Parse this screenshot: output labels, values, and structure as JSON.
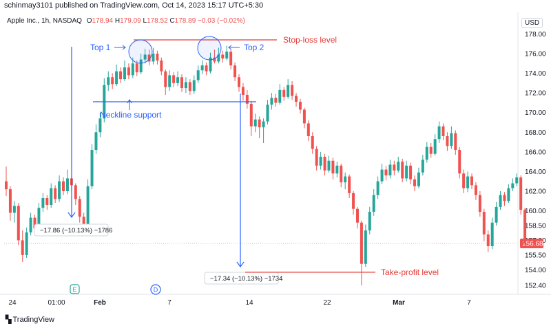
{
  "header": {
    "publisher": "schinmay3101 published on TradingView.com, Oct 14, 2023 15:17 UTC+5:30"
  },
  "symbol": {
    "name": "Apple Inc., 1h, NASDAQ",
    "o_label": "O",
    "o_value": "178.94",
    "h_label": "H",
    "h_value": "179.09",
    "l_label": "L",
    "l_value": "178.52",
    "c_label": "C",
    "c_value": "178.89",
    "change": "−0.03 (−0.02%)"
  },
  "currency": "USD",
  "branding": "TradingView",
  "colors": {
    "up": "#26a69a",
    "down": "#ef5350",
    "annotation_blue": "#2962ff",
    "annotation_red": "#e53935",
    "price_tag": "#ef5350",
    "event_earnings": "#26a69a",
    "event_dividend": "#2962ff"
  },
  "chart_data": {
    "type": "candlestick",
    "y_axis": {
      "ticks": [
        "178.00",
        "176.00",
        "174.00",
        "172.00",
        "170.00",
        "168.00",
        "166.00",
        "164.00",
        "162.00",
        "160.00",
        "158.50",
        "157.00",
        "155.50",
        "154.00",
        "152.40"
      ],
      "range": [
        151.5,
        178.8
      ],
      "last_price": "156.68"
    },
    "x_axis": {
      "ticks": [
        "24",
        "01:00",
        "Feb",
        "7",
        "14",
        "22",
        "Mar",
        "7"
      ],
      "bold_ticks": [
        "Feb",
        "Mar"
      ]
    },
    "series": [
      {
        "o": 163.0,
        "c": 162.2,
        "h": 164.5,
        "l": 161.5
      },
      {
        "o": 162.2,
        "c": 159.8,
        "h": 162.5,
        "l": 159.0
      },
      {
        "o": 159.8,
        "c": 160.5,
        "h": 161.0,
        "l": 158.8
      },
      {
        "o": 160.5,
        "c": 157.0,
        "h": 160.8,
        "l": 156.5
      },
      {
        "o": 157.0,
        "c": 155.5,
        "h": 158.0,
        "l": 154.8
      },
      {
        "o": 155.5,
        "c": 157.8,
        "h": 158.3,
        "l": 155.2
      },
      {
        "o": 157.8,
        "c": 159.3,
        "h": 159.8,
        "l": 157.5
      },
      {
        "o": 159.3,
        "c": 158.2,
        "h": 159.6,
        "l": 157.6
      },
      {
        "o": 158.2,
        "c": 160.3,
        "h": 160.8,
        "l": 158.0
      },
      {
        "o": 160.3,
        "c": 161.3,
        "h": 161.8,
        "l": 159.9
      },
      {
        "o": 161.3,
        "c": 160.6,
        "h": 161.6,
        "l": 160.1
      },
      {
        "o": 160.6,
        "c": 162.3,
        "h": 162.8,
        "l": 160.3
      },
      {
        "o": 162.3,
        "c": 161.2,
        "h": 162.6,
        "l": 160.8
      },
      {
        "o": 161.2,
        "c": 163.0,
        "h": 163.6,
        "l": 160.9
      },
      {
        "o": 163.0,
        "c": 162.0,
        "h": 163.4,
        "l": 161.6
      },
      {
        "o": 162.0,
        "c": 163.3,
        "h": 164.2,
        "l": 161.7
      },
      {
        "o": 163.3,
        "c": 162.6,
        "h": 163.5,
        "l": 162.0
      },
      {
        "o": 162.6,
        "c": 161.2,
        "h": 162.8,
        "l": 160.6
      },
      {
        "o": 161.2,
        "c": 159.4,
        "h": 161.5,
        "l": 158.8
      },
      {
        "o": 159.4,
        "c": 158.6,
        "h": 159.8,
        "l": 158.0
      },
      {
        "o": 158.6,
        "c": 162.5,
        "h": 163.2,
        "l": 158.3
      },
      {
        "o": 162.5,
        "c": 166.2,
        "h": 166.8,
        "l": 162.2
      },
      {
        "o": 166.2,
        "c": 168.0,
        "h": 168.8,
        "l": 165.8
      },
      {
        "o": 168.0,
        "c": 169.4,
        "h": 170.0,
        "l": 167.5
      },
      {
        "o": 169.4,
        "c": 172.8,
        "h": 173.5,
        "l": 169.0
      },
      {
        "o": 172.8,
        "c": 173.6,
        "h": 174.2,
        "l": 172.2
      },
      {
        "o": 173.6,
        "c": 172.9,
        "h": 174.0,
        "l": 172.4
      },
      {
        "o": 172.9,
        "c": 174.2,
        "h": 174.9,
        "l": 172.7
      },
      {
        "o": 174.2,
        "c": 173.4,
        "h": 174.6,
        "l": 173.0
      },
      {
        "o": 173.4,
        "c": 174.6,
        "h": 175.3,
        "l": 173.2
      },
      {
        "o": 174.6,
        "c": 173.8,
        "h": 175.0,
        "l": 173.4
      },
      {
        "o": 173.8,
        "c": 175.0,
        "h": 175.6,
        "l": 173.5
      },
      {
        "o": 175.0,
        "c": 174.1,
        "h": 175.3,
        "l": 173.7
      },
      {
        "o": 174.1,
        "c": 175.4,
        "h": 176.0,
        "l": 173.9
      },
      {
        "o": 175.4,
        "c": 175.9,
        "h": 176.5,
        "l": 175.0
      },
      {
        "o": 175.9,
        "c": 175.2,
        "h": 176.4,
        "l": 174.8
      },
      {
        "o": 175.2,
        "c": 176.0,
        "h": 176.6,
        "l": 174.9
      },
      {
        "o": 176.0,
        "c": 175.3,
        "h": 176.3,
        "l": 174.9
      },
      {
        "o": 175.3,
        "c": 174.2,
        "h": 175.6,
        "l": 173.8
      },
      {
        "o": 174.2,
        "c": 172.6,
        "h": 174.4,
        "l": 171.8
      },
      {
        "o": 172.6,
        "c": 173.8,
        "h": 174.3,
        "l": 172.2
      },
      {
        "o": 173.8,
        "c": 173.0,
        "h": 174.1,
        "l": 172.6
      },
      {
        "o": 173.0,
        "c": 173.6,
        "h": 174.2,
        "l": 172.7
      },
      {
        "o": 173.6,
        "c": 172.5,
        "h": 173.9,
        "l": 172.1
      },
      {
        "o": 172.5,
        "c": 173.1,
        "h": 173.6,
        "l": 172.0
      },
      {
        "o": 173.1,
        "c": 172.2,
        "h": 173.4,
        "l": 171.8
      },
      {
        "o": 172.2,
        "c": 173.3,
        "h": 173.8,
        "l": 171.9
      },
      {
        "o": 173.3,
        "c": 174.3,
        "h": 174.8,
        "l": 173.0
      },
      {
        "o": 174.3,
        "c": 174.8,
        "h": 175.3,
        "l": 173.9
      },
      {
        "o": 174.8,
        "c": 174.2,
        "h": 175.1,
        "l": 173.8
      },
      {
        "o": 174.2,
        "c": 175.6,
        "h": 176.1,
        "l": 174.0
      },
      {
        "o": 175.6,
        "c": 175.2,
        "h": 176.4,
        "l": 175.0
      },
      {
        "o": 175.2,
        "c": 175.9,
        "h": 176.6,
        "l": 175.0
      },
      {
        "o": 175.9,
        "c": 175.5,
        "h": 176.3,
        "l": 175.1
      },
      {
        "o": 175.5,
        "c": 176.2,
        "h": 176.8,
        "l": 175.3
      },
      {
        "o": 176.2,
        "c": 174.8,
        "h": 176.4,
        "l": 174.4
      },
      {
        "o": 174.8,
        "c": 173.6,
        "h": 175.1,
        "l": 173.2
      },
      {
        "o": 173.6,
        "c": 172.6,
        "h": 173.9,
        "l": 172.1
      },
      {
        "o": 172.6,
        "c": 171.8,
        "h": 173.0,
        "l": 171.2
      },
      {
        "o": 171.8,
        "c": 170.9,
        "h": 172.3,
        "l": 170.4
      },
      {
        "o": 170.9,
        "c": 168.6,
        "h": 171.2,
        "l": 167.6
      },
      {
        "o": 168.6,
        "c": 169.3,
        "h": 169.9,
        "l": 168.0
      },
      {
        "o": 169.3,
        "c": 168.5,
        "h": 169.6,
        "l": 167.4
      },
      {
        "o": 168.5,
        "c": 169.1,
        "h": 169.4,
        "l": 166.9
      },
      {
        "o": 169.1,
        "c": 170.8,
        "h": 171.3,
        "l": 168.8
      },
      {
        "o": 170.8,
        "c": 171.5,
        "h": 172.0,
        "l": 170.3
      },
      {
        "o": 171.5,
        "c": 171.0,
        "h": 171.9,
        "l": 170.6
      },
      {
        "o": 171.0,
        "c": 172.3,
        "h": 172.9,
        "l": 170.8
      },
      {
        "o": 172.3,
        "c": 171.6,
        "h": 172.6,
        "l": 171.2
      },
      {
        "o": 171.6,
        "c": 172.8,
        "h": 173.4,
        "l": 171.4
      },
      {
        "o": 172.8,
        "c": 171.7,
        "h": 173.2,
        "l": 171.3
      },
      {
        "o": 171.7,
        "c": 171.1,
        "h": 172.0,
        "l": 170.6
      },
      {
        "o": 171.1,
        "c": 170.3,
        "h": 171.4,
        "l": 169.9
      },
      {
        "o": 170.3,
        "c": 168.9,
        "h": 170.5,
        "l": 168.4
      },
      {
        "o": 168.9,
        "c": 167.6,
        "h": 169.2,
        "l": 167.1
      },
      {
        "o": 167.6,
        "c": 166.3,
        "h": 168.0,
        "l": 165.8
      },
      {
        "o": 166.3,
        "c": 164.6,
        "h": 166.6,
        "l": 164.1
      },
      {
        "o": 164.6,
        "c": 165.5,
        "h": 166.0,
        "l": 164.2
      },
      {
        "o": 165.5,
        "c": 164.1,
        "h": 165.8,
        "l": 163.6
      },
      {
        "o": 164.1,
        "c": 165.1,
        "h": 165.6,
        "l": 163.9
      },
      {
        "o": 165.1,
        "c": 163.8,
        "h": 165.4,
        "l": 163.2
      },
      {
        "o": 163.8,
        "c": 164.6,
        "h": 165.0,
        "l": 163.4
      },
      {
        "o": 164.6,
        "c": 162.9,
        "h": 164.8,
        "l": 162.4
      },
      {
        "o": 162.9,
        "c": 163.5,
        "h": 163.9,
        "l": 162.2
      },
      {
        "o": 163.5,
        "c": 161.8,
        "h": 163.7,
        "l": 161.3
      },
      {
        "o": 161.8,
        "c": 160.2,
        "h": 162.0,
        "l": 159.6
      },
      {
        "o": 160.2,
        "c": 158.8,
        "h": 160.4,
        "l": 158.2
      },
      {
        "o": 158.8,
        "c": 154.6,
        "h": 159.0,
        "l": 152.4
      },
      {
        "o": 154.6,
        "c": 158.0,
        "h": 158.6,
        "l": 154.3
      },
      {
        "o": 158.0,
        "c": 159.9,
        "h": 160.4,
        "l": 157.6
      },
      {
        "o": 159.9,
        "c": 161.6,
        "h": 162.2,
        "l": 159.5
      },
      {
        "o": 161.6,
        "c": 163.0,
        "h": 163.5,
        "l": 161.2
      },
      {
        "o": 163.0,
        "c": 164.2,
        "h": 164.8,
        "l": 162.7
      },
      {
        "o": 164.2,
        "c": 163.6,
        "h": 164.6,
        "l": 163.1
      },
      {
        "o": 163.6,
        "c": 164.7,
        "h": 165.2,
        "l": 163.3
      },
      {
        "o": 164.7,
        "c": 164.1,
        "h": 165.1,
        "l": 163.6
      },
      {
        "o": 164.1,
        "c": 165.0,
        "h": 165.5,
        "l": 163.9
      },
      {
        "o": 165.0,
        "c": 163.3,
        "h": 165.3,
        "l": 162.9
      },
      {
        "o": 163.3,
        "c": 164.6,
        "h": 165.1,
        "l": 163.0
      },
      {
        "o": 164.6,
        "c": 163.2,
        "h": 164.9,
        "l": 162.7
      },
      {
        "o": 163.2,
        "c": 162.5,
        "h": 163.6,
        "l": 162.0
      },
      {
        "o": 162.5,
        "c": 163.9,
        "h": 164.4,
        "l": 162.3
      },
      {
        "o": 163.9,
        "c": 165.2,
        "h": 165.7,
        "l": 163.6
      },
      {
        "o": 165.2,
        "c": 166.5,
        "h": 167.0,
        "l": 164.9
      },
      {
        "o": 166.5,
        "c": 165.8,
        "h": 166.9,
        "l": 165.4
      },
      {
        "o": 165.8,
        "c": 167.3,
        "h": 167.8,
        "l": 165.6
      },
      {
        "o": 167.3,
        "c": 168.6,
        "h": 169.1,
        "l": 166.9
      },
      {
        "o": 168.6,
        "c": 167.6,
        "h": 168.9,
        "l": 167.2
      },
      {
        "o": 167.6,
        "c": 166.6,
        "h": 168.0,
        "l": 166.1
      },
      {
        "o": 166.6,
        "c": 167.9,
        "h": 168.6,
        "l": 166.3
      },
      {
        "o": 167.9,
        "c": 166.2,
        "h": 168.2,
        "l": 165.7
      },
      {
        "o": 166.2,
        "c": 163.8,
        "h": 166.5,
        "l": 163.3
      },
      {
        "o": 163.8,
        "c": 162.3,
        "h": 164.2,
        "l": 161.8
      },
      {
        "o": 162.3,
        "c": 163.5,
        "h": 164.0,
        "l": 161.9
      },
      {
        "o": 163.5,
        "c": 162.6,
        "h": 163.8,
        "l": 162.2
      },
      {
        "o": 162.6,
        "c": 161.6,
        "h": 162.9,
        "l": 161.1
      },
      {
        "o": 161.6,
        "c": 159.9,
        "h": 162.0,
        "l": 159.4
      },
      {
        "o": 159.9,
        "c": 157.6,
        "h": 160.2,
        "l": 156.9
      },
      {
        "o": 157.6,
        "c": 156.4,
        "h": 158.0,
        "l": 155.8
      },
      {
        "o": 156.4,
        "c": 158.8,
        "h": 159.3,
        "l": 156.1
      },
      {
        "o": 158.8,
        "c": 160.4,
        "h": 160.9,
        "l": 158.5
      },
      {
        "o": 160.4,
        "c": 161.6,
        "h": 162.0,
        "l": 160.1
      },
      {
        "o": 161.6,
        "c": 161.0,
        "h": 161.9,
        "l": 160.5
      },
      {
        "o": 161.0,
        "c": 162.3,
        "h": 162.7,
        "l": 160.8
      },
      {
        "o": 162.3,
        "c": 162.8,
        "h": 163.3,
        "l": 162.0
      },
      {
        "o": 162.8,
        "c": 163.4,
        "h": 163.8,
        "l": 162.5
      },
      {
        "o": 163.4,
        "c": 160.1,
        "h": 163.6,
        "l": 159.6
      },
      {
        "o": 160.1,
        "c": 156.68,
        "h": 160.3,
        "l": 156.2
      }
    ],
    "annotations": [
      {
        "label": "Top 1"
      },
      {
        "label": "Top 2"
      },
      {
        "label": "Stop-loss level",
        "price": 177.4
      },
      {
        "label": "Neckline support",
        "price": 171.1
      },
      {
        "label": "Take-profit level",
        "price": 153.75
      }
    ],
    "measures": [
      {
        "text": "−17.86 (−10.13%) −1786"
      },
      {
        "text": "−17.34 (−10.13%) −1734"
      }
    ],
    "events": [
      {
        "letter": "E",
        "kind": "earnings"
      },
      {
        "letter": "D",
        "kind": "dividend"
      }
    ]
  }
}
